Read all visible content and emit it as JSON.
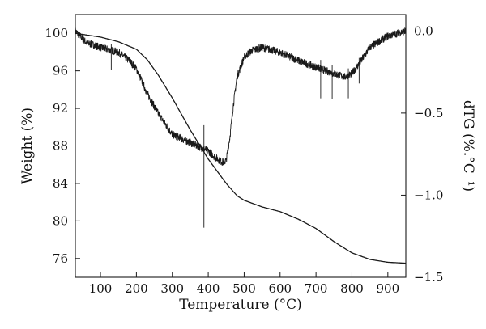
{
  "chart_data": {
    "type": "line",
    "title": "",
    "xlabel": "Temperature (°C)",
    "ylabel_left": "Weight (%)",
    "ylabel_right": "dTG (%.°C⁻¹)",
    "xlim": [
      30,
      950
    ],
    "ylim_left": [
      74,
      102
    ],
    "ylim_right": [
      -1.5,
      0.1
    ],
    "x_ticks": [
      100,
      200,
      300,
      400,
      500,
      600,
      700,
      800,
      900
    ],
    "y_left_ticks": [
      76,
      80,
      84,
      88,
      92,
      96,
      100
    ],
    "y_right_ticks": [
      0.0,
      -0.5,
      -1.0,
      -1.5
    ],
    "y_right_tick_labels": [
      "0.0",
      "−0.5",
      "−1.0",
      "−1.5"
    ],
    "grid": false,
    "legend": "none",
    "line_color": "#1a1a1a",
    "series": [
      {
        "axis": "left",
        "x": [
          30,
          100,
          150,
          200,
          230,
          260,
          300,
          350,
          400,
          450,
          480,
          500,
          550,
          600,
          650,
          700,
          750,
          800,
          850,
          900,
          950
        ],
        "values": [
          100.0,
          99.6,
          99.1,
          98.3,
          97.2,
          95.6,
          93.1,
          89.7,
          86.6,
          84.0,
          82.7,
          82.2,
          81.5,
          81.0,
          80.2,
          79.2,
          77.8,
          76.6,
          75.9,
          75.6,
          75.5
        ]
      },
      {
        "axis": "right",
        "noisy": true,
        "x": [
          30,
          60,
          100,
          150,
          180,
          200,
          230,
          260,
          300,
          330,
          360,
          400,
          420,
          440,
          450,
          460,
          470,
          480,
          500,
          520,
          550,
          600,
          650,
          700,
          750,
          780,
          800,
          820,
          850,
          900,
          950
        ],
        "values": [
          0.0,
          -0.07,
          -0.1,
          -0.13,
          -0.18,
          -0.23,
          -0.38,
          -0.5,
          -0.63,
          -0.66,
          -0.69,
          -0.73,
          -0.77,
          -0.8,
          -0.79,
          -0.65,
          -0.45,
          -0.28,
          -0.16,
          -0.12,
          -0.1,
          -0.13,
          -0.18,
          -0.22,
          -0.26,
          -0.28,
          -0.26,
          -0.2,
          -0.1,
          -0.03,
          0.0
        ]
      }
    ]
  }
}
